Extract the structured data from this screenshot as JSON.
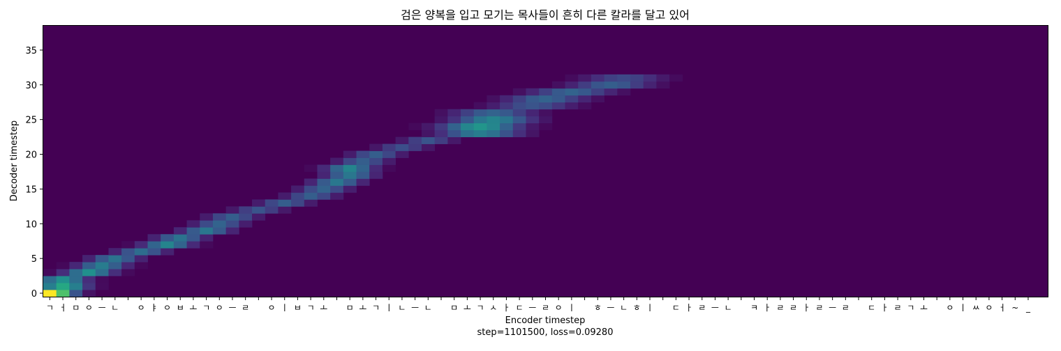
{
  "chart_data": {
    "type": "heatmap",
    "title": "검은 양복을 입고 모기는 목사들이 흔히 다른 칼라를 달고 있어",
    "xlabel": "Encoder timestep",
    "ylabel": "Decoder timestep",
    "footer": "step=1101500, loss=0.09280",
    "colormap": "viridis",
    "value_range": [
      0,
      1
    ],
    "background_color": "#440154",
    "xlim": [
      -0.5,
      76.5
    ],
    "ylim": [
      -0.5,
      38.5
    ],
    "y_ticks": [
      0,
      5,
      10,
      15,
      20,
      25,
      30,
      35
    ],
    "x_tick_labels": [
      "ㄱ",
      "ㅓ",
      "ㅁ",
      "ㅇ",
      "ㅡ",
      "ㄴ",
      " ",
      "ㅇ",
      "ㅑ",
      "ㅇ",
      "ㅂ",
      "ㅗ",
      "ㄱ",
      "ㅇ",
      "ㅡ",
      "ㄹ",
      " ",
      "ㅇ",
      "ㅣ",
      "ㅂ",
      "ㄱ",
      "ㅗ",
      " ",
      "ㅁ",
      "ㅗ",
      "ㄱ",
      "ㅣ",
      "ㄴ",
      "ㅡ",
      "ㄴ",
      " ",
      "ㅁ",
      "ㅗ",
      "ㄱ",
      "ㅅ",
      "ㅏ",
      "ㄷ",
      "ㅡ",
      "ㄹ",
      "ㅇ",
      "ㅣ",
      " ",
      "ㅎ",
      "ㅡ",
      "ㄴ",
      "ㅎ",
      "ㅣ",
      " ",
      "ㄷ",
      "ㅏ",
      "ㄹ",
      "ㅡ",
      "ㄴ",
      " ",
      "ㅋ",
      "ㅏ",
      "ㄹ",
      "ㄹ",
      "ㅏ",
      "ㄹ",
      "ㅡ",
      "ㄹ",
      " ",
      "ㄷ",
      "ㅏ",
      "ㄹ",
      "ㄱ",
      "ㅗ",
      " ",
      "ㅇ",
      "ㅣ",
      "ㅆ",
      "ㅇ",
      "ㅓ",
      "~",
      "_"
    ],
    "alignment_path": [
      {
        "decoder": 0,
        "encoder": 0,
        "weight": 1.0
      },
      {
        "decoder": 1,
        "encoder": 1,
        "weight": 0.6
      },
      {
        "decoder": 2,
        "encoder": 1,
        "weight": 0.5
      },
      {
        "decoder": 3,
        "encoder": 3,
        "weight": 0.5
      },
      {
        "decoder": 4,
        "encoder": 4,
        "weight": 0.42
      },
      {
        "decoder": 5,
        "encoder": 5,
        "weight": 0.38
      },
      {
        "decoder": 6,
        "encoder": 7,
        "weight": 0.36
      },
      {
        "decoder": 7,
        "encoder": 9,
        "weight": 0.45
      },
      {
        "decoder": 8,
        "encoder": 10,
        "weight": 0.38
      },
      {
        "decoder": 9,
        "encoder": 12,
        "weight": 0.4
      },
      {
        "decoder": 10,
        "encoder": 13,
        "weight": 0.32
      },
      {
        "decoder": 11,
        "encoder": 14,
        "weight": 0.3
      },
      {
        "decoder": 12,
        "encoder": 16,
        "weight": 0.26
      },
      {
        "decoder": 13,
        "encoder": 18,
        "weight": 0.3
      },
      {
        "decoder": 14,
        "encoder": 20,
        "weight": 0.3
      },
      {
        "decoder": 15,
        "encoder": 21,
        "weight": 0.32
      },
      {
        "decoder": 16,
        "encoder": 22,
        "weight": 0.4
      },
      {
        "decoder": 17,
        "encoder": 23,
        "weight": 0.4
      },
      {
        "decoder": 18,
        "encoder": 23,
        "weight": 0.45
      },
      {
        "decoder": 19,
        "encoder": 24,
        "weight": 0.3
      },
      {
        "decoder": 20,
        "encoder": 25,
        "weight": 0.3
      },
      {
        "decoder": 21,
        "encoder": 27,
        "weight": 0.24
      },
      {
        "decoder": 22,
        "encoder": 29,
        "weight": 0.26
      },
      {
        "decoder": 23,
        "encoder": 33,
        "weight": 0.42
      },
      {
        "decoder": 24,
        "encoder": 33,
        "weight": 0.52
      },
      {
        "decoder": 25,
        "encoder": 34,
        "weight": 0.45
      },
      {
        "decoder": 26,
        "encoder": 34,
        "weight": 0.32
      },
      {
        "decoder": 27,
        "encoder": 37,
        "weight": 0.26
      },
      {
        "decoder": 28,
        "encoder": 38,
        "weight": 0.32
      },
      {
        "decoder": 29,
        "encoder": 40,
        "weight": 0.32
      },
      {
        "decoder": 30,
        "encoder": 43,
        "weight": 0.3
      },
      {
        "decoder": 31,
        "encoder": 44,
        "weight": 0.22
      }
    ]
  }
}
